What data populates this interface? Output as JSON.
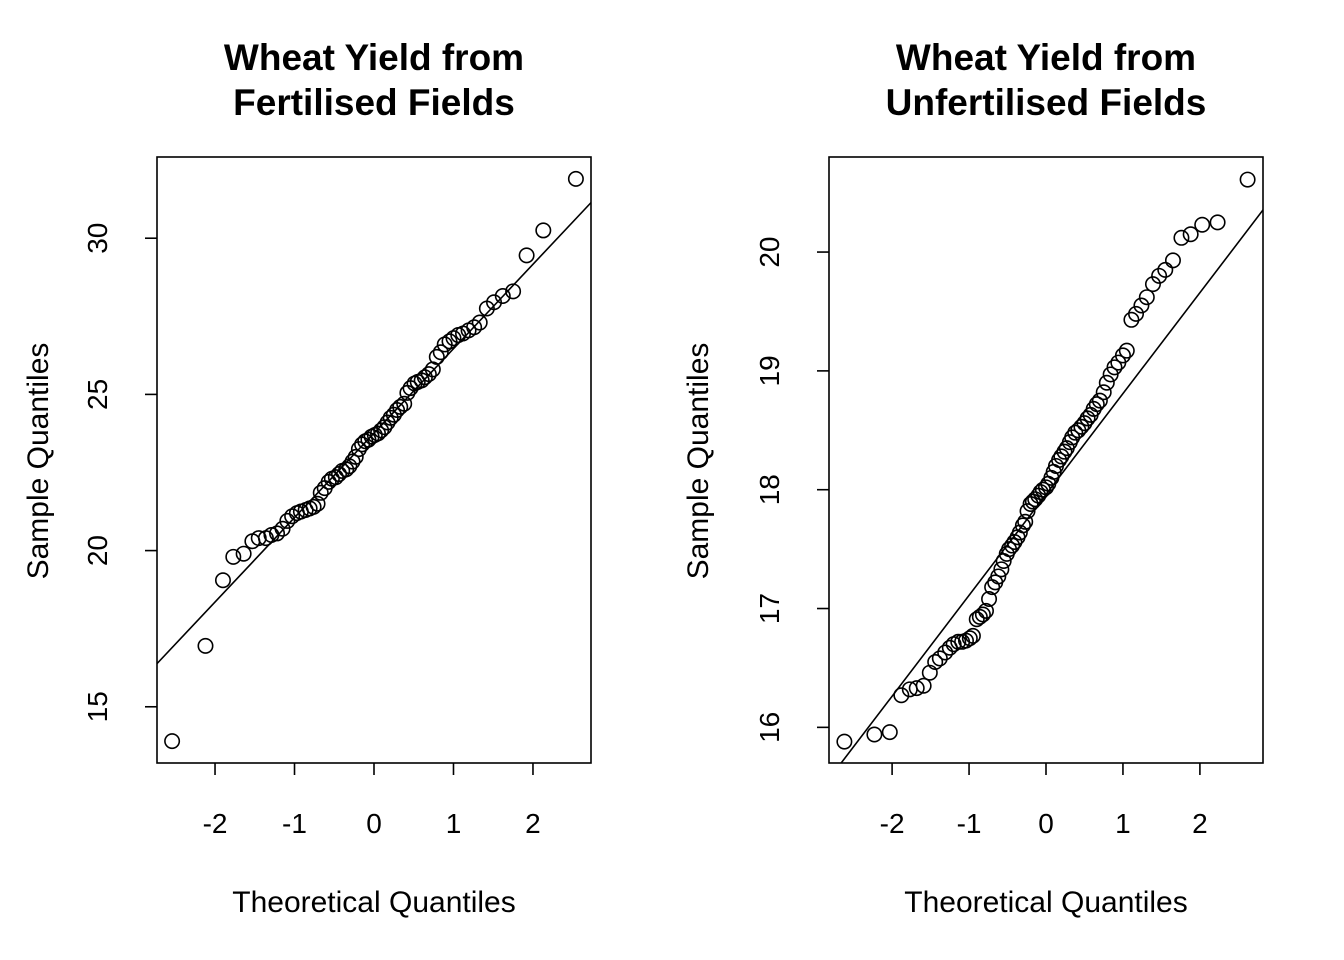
{
  "chart_data": [
    {
      "type": "scatter",
      "subtype": "normal-qq-plot",
      "title": [
        "Wheat Yield from",
        "Fertilised Fields"
      ],
      "xlabel": "Theoretical Quantiles",
      "ylabel": "Sample Quantiles",
      "xlim": [
        -2.73,
        2.73
      ],
      "ylim": [
        13.2,
        32.6
      ],
      "xticks": [
        -2,
        -1,
        0,
        1,
        2
      ],
      "yticks": [
        15,
        20,
        25,
        30
      ],
      "reference_line": {
        "slope": 2.703,
        "intercept": 23.76
      },
      "series": [
        {
          "points": [
            [
              -2.54,
              13.9
            ],
            [
              -2.12,
              16.95
            ],
            [
              -1.9,
              19.05
            ],
            [
              -1.77,
              19.8
            ],
            [
              -1.64,
              19.9
            ],
            [
              -1.53,
              20.3
            ],
            [
              -1.45,
              20.4
            ],
            [
              -1.36,
              20.4
            ],
            [
              -1.29,
              20.5
            ],
            [
              -1.22,
              20.55
            ],
            [
              -1.15,
              20.7
            ],
            [
              -1.09,
              20.95
            ],
            [
              -1.03,
              21.1
            ],
            [
              -0.97,
              21.2
            ],
            [
              -0.92,
              21.25
            ],
            [
              -0.86,
              21.3
            ],
            [
              -0.81,
              21.35
            ],
            [
              -0.76,
              21.4
            ],
            [
              -0.71,
              21.5
            ],
            [
              -0.67,
              21.85
            ],
            [
              -0.62,
              22.0
            ],
            [
              -0.57,
              22.2
            ],
            [
              -0.53,
              22.3
            ],
            [
              -0.48,
              22.35
            ],
            [
              -0.44,
              22.45
            ],
            [
              -0.4,
              22.55
            ],
            [
              -0.35,
              22.6
            ],
            [
              -0.31,
              22.7
            ],
            [
              -0.27,
              22.85
            ],
            [
              -0.23,
              23.0
            ],
            [
              -0.19,
              23.25
            ],
            [
              -0.15,
              23.4
            ],
            [
              -0.11,
              23.5
            ],
            [
              -0.07,
              23.55
            ],
            [
              -0.03,
              23.65
            ],
            [
              0.01,
              23.7
            ],
            [
              0.05,
              23.75
            ],
            [
              0.09,
              23.85
            ],
            [
              0.13,
              23.95
            ],
            [
              0.17,
              24.1
            ],
            [
              0.21,
              24.25
            ],
            [
              0.25,
              24.35
            ],
            [
              0.29,
              24.5
            ],
            [
              0.33,
              24.6
            ],
            [
              0.38,
              24.7
            ],
            [
              0.42,
              25.05
            ],
            [
              0.46,
              25.2
            ],
            [
              0.51,
              25.35
            ],
            [
              0.55,
              25.4
            ],
            [
              0.6,
              25.45
            ],
            [
              0.64,
              25.55
            ],
            [
              0.69,
              25.65
            ],
            [
              0.74,
              25.8
            ],
            [
              0.79,
              26.2
            ],
            [
              0.84,
              26.35
            ],
            [
              0.89,
              26.6
            ],
            [
              0.95,
              26.7
            ],
            [
              1.0,
              26.8
            ],
            [
              1.06,
              26.9
            ],
            [
              1.12,
              26.95
            ],
            [
              1.19,
              27.05
            ],
            [
              1.26,
              27.15
            ],
            [
              1.33,
              27.3
            ],
            [
              1.42,
              27.75
            ],
            [
              1.51,
              27.95
            ],
            [
              1.62,
              28.15
            ],
            [
              1.75,
              28.3
            ],
            [
              1.92,
              29.45
            ],
            [
              2.13,
              30.25
            ],
            [
              2.54,
              31.9
            ]
          ]
        }
      ]
    },
    {
      "type": "scatter",
      "subtype": "normal-qq-plot",
      "title": [
        "Wheat Yield from",
        "Unfertilised Fields"
      ],
      "xlabel": "Theoretical Quantiles",
      "ylabel": "Sample Quantiles",
      "xlim": [
        -2.82,
        2.82
      ],
      "ylim": [
        15.7,
        20.8
      ],
      "xticks": [
        -2,
        -1,
        0,
        1,
        2
      ],
      "yticks": [
        16,
        17,
        18,
        19,
        20
      ],
      "reference_line": {
        "slope": 0.849,
        "intercept": 17.96
      },
      "series": [
        {
          "points": [
            [
              -2.62,
              15.88
            ],
            [
              -2.23,
              15.94
            ],
            [
              -2.03,
              15.96
            ],
            [
              -1.88,
              16.27
            ],
            [
              -1.77,
              16.32
            ],
            [
              -1.68,
              16.33
            ],
            [
              -1.59,
              16.35
            ],
            [
              -1.51,
              16.46
            ],
            [
              -1.44,
              16.55
            ],
            [
              -1.38,
              16.58
            ],
            [
              -1.31,
              16.63
            ],
            [
              -1.25,
              16.67
            ],
            [
              -1.2,
              16.7
            ],
            [
              -1.14,
              16.72
            ],
            [
              -1.09,
              16.72
            ],
            [
              -1.04,
              16.73
            ],
            [
              -0.99,
              16.75
            ],
            [
              -0.95,
              16.77
            ],
            [
              -0.9,
              16.91
            ],
            [
              -0.86,
              16.93
            ],
            [
              -0.82,
              16.95
            ],
            [
              -0.78,
              16.98
            ],
            [
              -0.74,
              17.08
            ],
            [
              -0.7,
              17.18
            ],
            [
              -0.66,
              17.22
            ],
            [
              -0.62,
              17.27
            ],
            [
              -0.58,
              17.33
            ],
            [
              -0.55,
              17.4
            ],
            [
              -0.51,
              17.46
            ],
            [
              -0.48,
              17.5
            ],
            [
              -0.44,
              17.53
            ],
            [
              -0.41,
              17.56
            ],
            [
              -0.37,
              17.6
            ],
            [
              -0.34,
              17.64
            ],
            [
              -0.3,
              17.7
            ],
            [
              -0.27,
              17.73
            ],
            [
              -0.24,
              17.82
            ],
            [
              -0.2,
              17.88
            ],
            [
              -0.17,
              17.9
            ],
            [
              -0.14,
              17.92
            ],
            [
              -0.1,
              17.95
            ],
            [
              -0.07,
              17.98
            ],
            [
              -0.04,
              18.0
            ],
            [
              0.0,
              18.02
            ],
            [
              0.03,
              18.05
            ],
            [
              0.07,
              18.1
            ],
            [
              0.1,
              18.15
            ],
            [
              0.13,
              18.2
            ],
            [
              0.17,
              18.25
            ],
            [
              0.2,
              18.28
            ],
            [
              0.24,
              18.32
            ],
            [
              0.27,
              18.35
            ],
            [
              0.31,
              18.4
            ],
            [
              0.34,
              18.44
            ],
            [
              0.38,
              18.48
            ],
            [
              0.42,
              18.5
            ],
            [
              0.46,
              18.53
            ],
            [
              0.5,
              18.56
            ],
            [
              0.54,
              18.6
            ],
            [
              0.58,
              18.63
            ],
            [
              0.62,
              18.68
            ],
            [
              0.66,
              18.72
            ],
            [
              0.7,
              18.75
            ],
            [
              0.75,
              18.82
            ],
            [
              0.79,
              18.9
            ],
            [
              0.84,
              18.97
            ],
            [
              0.89,
              19.03
            ],
            [
              0.94,
              19.07
            ],
            [
              1.0,
              19.13
            ],
            [
              1.05,
              19.17
            ],
            [
              1.11,
              19.43
            ],
            [
              1.17,
              19.48
            ],
            [
              1.24,
              19.55
            ],
            [
              1.31,
              19.62
            ],
            [
              1.39,
              19.73
            ],
            [
              1.47,
              19.8
            ],
            [
              1.55,
              19.85
            ],
            [
              1.65,
              19.93
            ],
            [
              1.76,
              20.12
            ],
            [
              1.88,
              20.15
            ],
            [
              2.03,
              20.23
            ],
            [
              2.23,
              20.25
            ],
            [
              2.62,
              20.61
            ]
          ]
        }
      ]
    }
  ]
}
